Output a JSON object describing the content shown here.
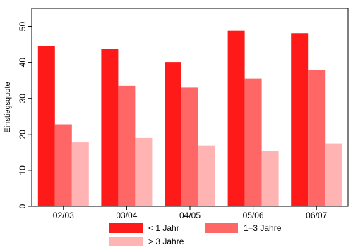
{
  "chart_data": {
    "type": "bar",
    "categories": [
      "02/03",
      "03/04",
      "04/05",
      "05/06",
      "06/07"
    ],
    "series": [
      {
        "name": "< 1 Jahr",
        "color": "#ff1a1a",
        "values": [
          44.6,
          43.8,
          40.1,
          48.8,
          48.1
        ]
      },
      {
        "name": "1–3 Jahre",
        "color": "#ff6666",
        "values": [
          22.8,
          33.5,
          33.0,
          35.5,
          37.8
        ]
      },
      {
        "name": "> 3 Jahre",
        "color": "#ffb3b3",
        "values": [
          17.8,
          19.0,
          16.9,
          15.3,
          17.5
        ]
      }
    ],
    "ylabel": "Einstiegsquote",
    "xlabel": "",
    "ylim": [
      0,
      55
    ],
    "yticks": [
      0,
      10,
      20,
      30,
      40,
      50
    ],
    "grid": false,
    "legend_position": "bottom"
  }
}
